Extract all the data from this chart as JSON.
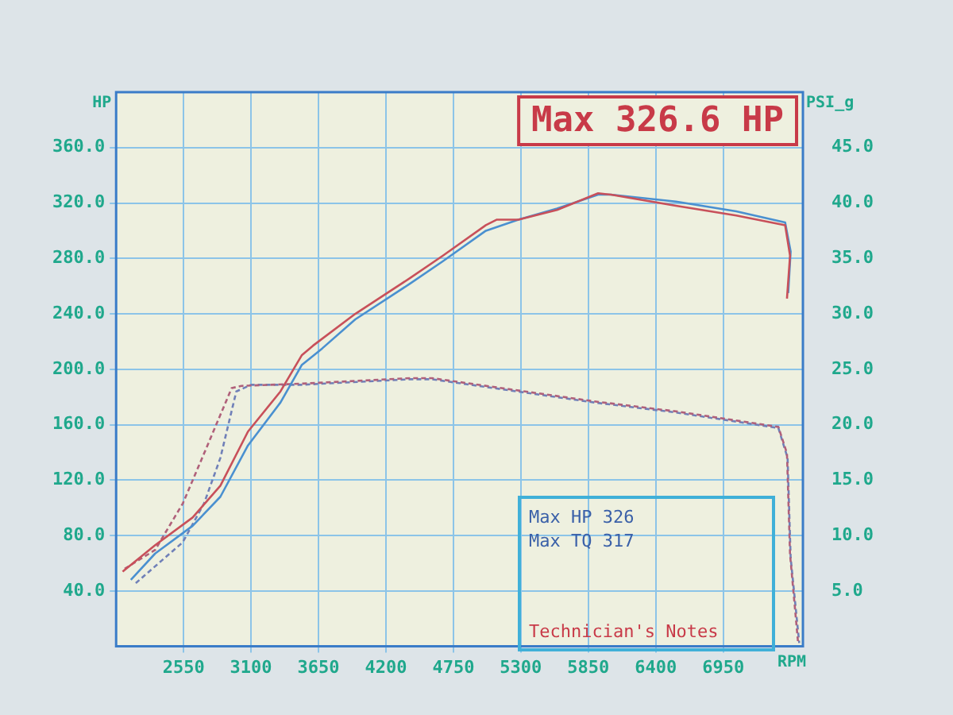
{
  "chart_data": {
    "type": "line",
    "title": "Max 326.6 HP",
    "xlabel": "RPM",
    "ylabel": "HP",
    "y2label": "PSI_g",
    "annotations": [
      "Max HP 326",
      "Max TQ 317",
      "Technician's Notes"
    ],
    "xlim": [
      2000,
      7600
    ],
    "xticks": [
      2550,
      3100,
      3650,
      4200,
      4750,
      5300,
      5850,
      6400,
      6950
    ],
    "ylim": [
      0,
      400
    ],
    "yticks": [
      {
        "value": 40,
        "label": "40.0"
      },
      {
        "value": 80,
        "label": "80.0"
      },
      {
        "value": 120,
        "label": "120.0"
      },
      {
        "value": 160,
        "label": "160.0"
      },
      {
        "value": 200,
        "label": "200.0"
      },
      {
        "value": 240,
        "label": "240.0"
      },
      {
        "value": 280,
        "label": "280.0"
      },
      {
        "value": 320,
        "label": "320.0"
      },
      {
        "value": 360,
        "label": "360.0"
      }
    ],
    "y2lim": [
      0,
      50
    ],
    "y2ticks": [
      {
        "value": 5,
        "label": "5.0"
      },
      {
        "value": 10,
        "label": "10.0"
      },
      {
        "value": 15,
        "label": "15.0"
      },
      {
        "value": 20,
        "label": "20.0"
      },
      {
        "value": 25,
        "label": "25.0"
      },
      {
        "value": 30,
        "label": "30.0"
      },
      {
        "value": 35,
        "label": "35.0"
      },
      {
        "value": 40,
        "label": "40.0"
      },
      {
        "value": 45,
        "label": "45.0"
      }
    ],
    "grid": true,
    "legend": false,
    "marker": "none",
    "series": [
      {
        "color": "#c8505a",
        "line_style": "solid",
        "x": [
          2053,
          2318,
          2624,
          2850,
          3075,
          3340,
          3513,
          3605,
          3950,
          4400,
          4665,
          5015,
          5105,
          5280,
          5595,
          5930,
          6035,
          6565,
          7056,
          7455,
          7495,
          7470
        ],
        "values": [
          54,
          73,
          93,
          116,
          155,
          184,
          210,
          217,
          240,
          266,
          282,
          304,
          308,
          308,
          315,
          327,
          326,
          318,
          311,
          304,
          282,
          251
        ]
      },
      {
        "color": "#4a90d0",
        "line_style": "solid",
        "x": [
          2120,
          2318,
          2624,
          2850,
          3075,
          3340,
          3513,
          3680,
          3950,
          4400,
          4665,
          5015,
          5280,
          5595,
          5930,
          6035,
          6565,
          7056,
          7455,
          7500,
          7480
        ],
        "values": [
          48,
          67,
          87,
          108,
          145,
          176,
          203,
          215,
          236,
          262,
          278,
          300,
          308,
          316,
          326,
          326,
          321,
          314,
          306,
          285,
          255
        ]
      },
      {
        "color": "#b0607a",
        "line_style": "dashed",
        "axis": "y2",
        "x": [
          2070,
          2318,
          2544,
          2717,
          2942,
          3022,
          3513,
          4400,
          4575,
          5900,
          6565,
          7400,
          7470,
          7495,
          7560
        ],
        "values": [
          7,
          8.7,
          12.9,
          17.4,
          23.3,
          23.5,
          23.7,
          24.2,
          24.2,
          22.1,
          21.2,
          19.8,
          17.4,
          8.3,
          0.4
        ]
      },
      {
        "color": "#7080b8",
        "line_style": "dashed",
        "axis": "y2",
        "x": [
          2160,
          2544,
          2717,
          2850,
          2980,
          3100,
          3513,
          4400,
          4575,
          5900,
          6565,
          7400,
          7475,
          7500,
          7570
        ],
        "values": [
          5.7,
          9.4,
          12.9,
          17,
          23,
          23.6,
          23.6,
          24.1,
          24.1,
          22,
          21.1,
          19.7,
          17,
          8,
          0.3
        ]
      }
    ]
  }
}
